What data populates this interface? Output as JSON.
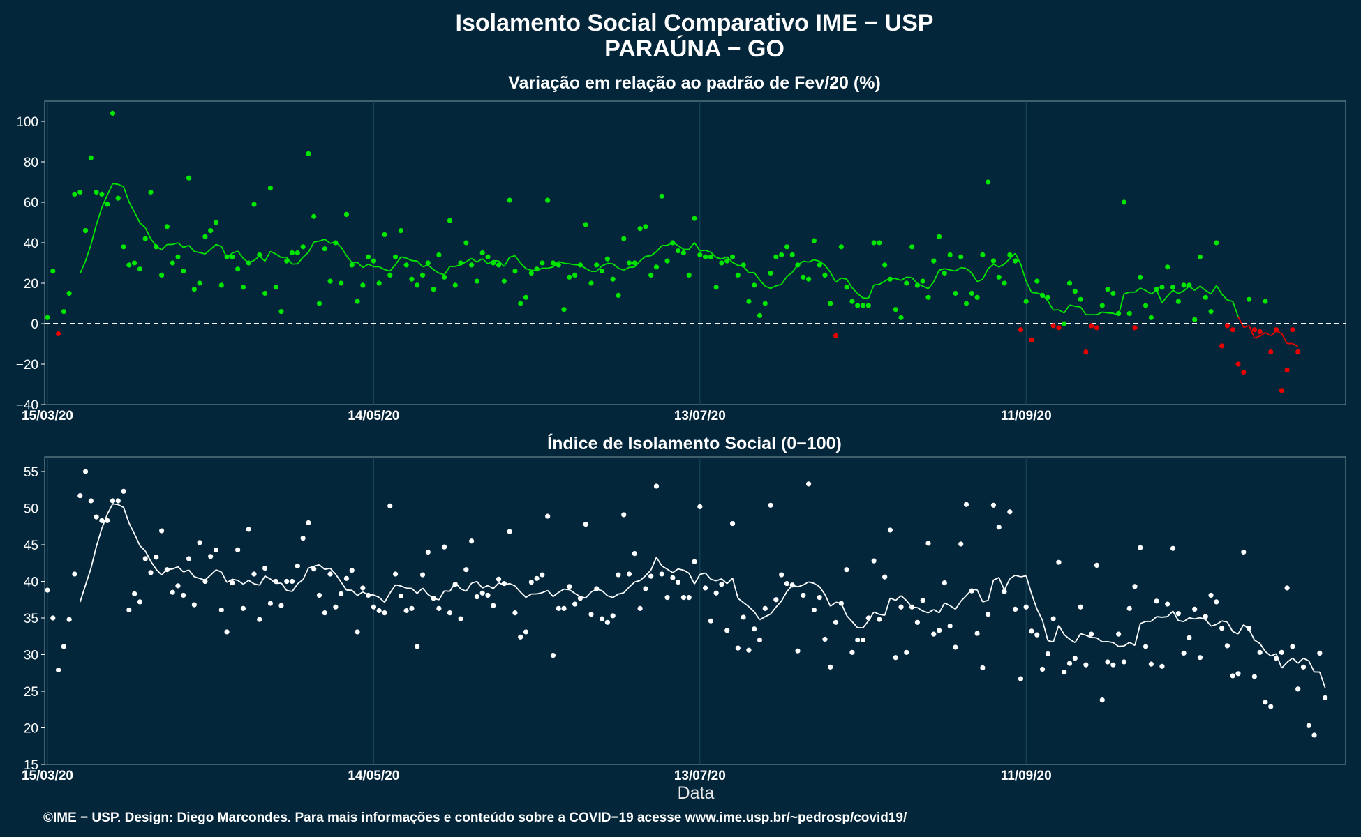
{
  "title": "Isolamento Social Comparativo IME − USP",
  "subtitle_location": "PARAÚNA − GO",
  "xlabel": "Data",
  "caption": "©IME − USP. Design: Diego Marcondes. Para mais informações e conteúdo sobre a COVID−19 acesse www.ime.usp.br/~pedrosp/covid19/",
  "colors": {
    "background": "#03263a",
    "positive": "#00e600",
    "negative": "#e60000",
    "index": "#ffffff",
    "grid": "#1c4a5a"
  },
  "chart_data": [
    {
      "type": "scatter",
      "title": "Variação em relação ao padrão de Fev/20 (%)",
      "x_start": "15/03/20",
      "x_ticks": [
        "15/03/20",
        "14/05/20",
        "13/07/20",
        "11/09/20"
      ],
      "x_tick_days": [
        0,
        60,
        120,
        180
      ],
      "ylim": [
        -40,
        110
      ],
      "y_ticks": [
        -40,
        -20,
        0,
        20,
        40,
        60,
        80,
        100
      ],
      "reference_line": 0,
      "grid": true,
      "values": [
        3,
        26,
        -5,
        6,
        15,
        64,
        65,
        46,
        82,
        65,
        64,
        59,
        104,
        62,
        38,
        29,
        30,
        27,
        42,
        65,
        38,
        24,
        48,
        30,
        33,
        26,
        72,
        17,
        20,
        43,
        46,
        50,
        19,
        33,
        33,
        27,
        18,
        30,
        59,
        34,
        15,
        67,
        18,
        6,
        31,
        35,
        35,
        38,
        84,
        53,
        10,
        37,
        21,
        40,
        20,
        54,
        29,
        11,
        19,
        33,
        31,
        20,
        44,
        24,
        33,
        46,
        29,
        22,
        19,
        24,
        30,
        17,
        34,
        23,
        51,
        19,
        30,
        40,
        29,
        21,
        35,
        33,
        30,
        29,
        21,
        61,
        26,
        10,
        13,
        25,
        27,
        30,
        61,
        30,
        29,
        7,
        23,
        24,
        29,
        49,
        20,
        29,
        26,
        32,
        22,
        14,
        42,
        30,
        30,
        47,
        48,
        24,
        28,
        63,
        31,
        40,
        36,
        35,
        24,
        52,
        34,
        33,
        33,
        18,
        30,
        31,
        33,
        24,
        29,
        11,
        19,
        4,
        10,
        25,
        33,
        34,
        38,
        34,
        29,
        23,
        22,
        41,
        29,
        24,
        10,
        -6,
        38,
        18,
        11,
        9,
        9,
        9,
        40,
        40,
        29,
        22,
        7,
        3,
        20,
        38,
        19,
        21,
        13,
        31,
        43,
        25,
        34,
        15,
        33,
        10,
        15,
        13,
        34,
        70,
        31,
        23,
        20,
        34,
        31,
        -3,
        11,
        -8,
        21,
        14,
        13,
        -1,
        -2,
        0,
        20,
        16,
        12,
        -14,
        -1,
        -2,
        9,
        17,
        15,
        5,
        60,
        5,
        -2,
        23,
        9,
        3,
        17,
        18,
        28,
        18,
        11,
        19,
        19,
        2,
        33,
        13,
        6,
        40,
        -11,
        -1,
        -3,
        -20,
        -24,
        12,
        -3,
        -4,
        11,
        -14,
        -3,
        -33,
        -23,
        -3,
        -14
      ],
      "moving_average": [
        null,
        null,
        null,
        null,
        null,
        null,
        null,
        null,
        null,
        null,
        null,
        null,
        null,
        null,
        null,
        null,
        null,
        null,
        null,
        null,
        null,
        null,
        null,
        null,
        null,
        null,
        null,
        null,
        null,
        null,
        null,
        null,
        null,
        null,
        null,
        null,
        null,
        null,
        null,
        null,
        null,
        null,
        null,
        null,
        null,
        null,
        null,
        null,
        null,
        null,
        null,
        null,
        null,
        null,
        null,
        null,
        null,
        null,
        null,
        null,
        null,
        null,
        null,
        null,
        null,
        null,
        null,
        null,
        null,
        null,
        null,
        null,
        null,
        null,
        null,
        null,
        null,
        null,
        null,
        null,
        null,
        null,
        null,
        null,
        null,
        null,
        null,
        null,
        null,
        null,
        null,
        null,
        null,
        null,
        null,
        null,
        null,
        null,
        null,
        null,
        null,
        null,
        null,
        null,
        null,
        null,
        null,
        null,
        null,
        null,
        null,
        null,
        null,
        null,
        null,
        null,
        null,
        null,
        null,
        null,
        null,
        null,
        null,
        null,
        null,
        null,
        null,
        null,
        null,
        null,
        null,
        null,
        null,
        null,
        null,
        null,
        null,
        null,
        null,
        null,
        null,
        null,
        null,
        null,
        null,
        null,
        null,
        null,
        null,
        null,
        null,
        null,
        null,
        null,
        null,
        null,
        null,
        null,
        null,
        null,
        null,
        null,
        null,
        null,
        null,
        null,
        null,
        null,
        null,
        null,
        null,
        null,
        null,
        null,
        null,
        null,
        null,
        null,
        null,
        null,
        null,
        null,
        null,
        null,
        null,
        null,
        null,
        null,
        null,
        null,
        null,
        null,
        null,
        null,
        null,
        null,
        null,
        null,
        null,
        null,
        null,
        null,
        null,
        null,
        null,
        null,
        null,
        null,
        null,
        null,
        null,
        null,
        null,
        null,
        null,
        null,
        null,
        null,
        null,
        null,
        null,
        null,
        null,
        null,
        null,
        null,
        null,
        null,
        null,
        null,
        null,
        null,
        null,
        null,
        null,
        null,
        null,
        null,
        null,
        null,
        null,
        null,
        null,
        null
      ]
    },
    {
      "type": "scatter",
      "title": "Índice de Isolamento Social (0−100)",
      "x_start": "15/03/20",
      "x_ticks": [
        "15/03/20",
        "14/05/20",
        "13/07/20",
        "11/09/20"
      ],
      "x_tick_days": [
        0,
        60,
        120,
        180
      ],
      "ylim": [
        15,
        57
      ],
      "y_ticks": [
        15,
        20,
        25,
        30,
        35,
        40,
        45,
        50,
        55
      ],
      "grid": true,
      "values": [
        38.8,
        35.0,
        27.9,
        31.1,
        34.8,
        41.0,
        51.7,
        55.0,
        51.0,
        48.8,
        48.3,
        48.3,
        51.0,
        51.0,
        52.3,
        36.1,
        38.3,
        37.2,
        43.1,
        41.2,
        43.3,
        46.9,
        41.6,
        38.5,
        39.4,
        38.1,
        43.1,
        36.8,
        45.3,
        40.0,
        43.4,
        44.3,
        36.1,
        33.1,
        39.8,
        44.3,
        36.3,
        47.1,
        41.0,
        34.8,
        41.8,
        37.0,
        40.0,
        36.7,
        40.0,
        40.0,
        42.1,
        45.9,
        48.0,
        41.7,
        38.1,
        35.7,
        41.0,
        36.5,
        38.3,
        40.4,
        41.5,
        33.1,
        39.1,
        38.1,
        36.5,
        36.0,
        35.7,
        50.3,
        41.0,
        38.0,
        36.0,
        36.3,
        31.1,
        40.9,
        44.0,
        37.7,
        36.3,
        44.7,
        35.7,
        39.6,
        34.9,
        41.6,
        45.5,
        37.9,
        38.4,
        38.1,
        36.7,
        40.3,
        39.7,
        46.8,
        35.7,
        32.4,
        33.1,
        39.9,
        40.4,
        40.9,
        48.9,
        29.9,
        36.3,
        36.3,
        39.3,
        36.9,
        37.7,
        47.8,
        35.5,
        39.0,
        34.9,
        34.4,
        35.3,
        40.9,
        49.1,
        41.0,
        43.8,
        36.3,
        39.0,
        40.7,
        53.0,
        41.0,
        37.8,
        40.5,
        39.9,
        37.8,
        37.8,
        42.7,
        50.2,
        39.1,
        34.6,
        38.4,
        39.6,
        33.3,
        47.9,
        30.9,
        35.1,
        30.6,
        33.5,
        32.0,
        36.3,
        50.4,
        37.5,
        40.9,
        39.7,
        39.5,
        30.5,
        38.1,
        53.3,
        36.1,
        37.8,
        32.1,
        28.3,
        34.4,
        37.0,
        41.6,
        30.3,
        32.0,
        32.0,
        35.0,
        42.8,
        34.8,
        40.6,
        47.0,
        29.6,
        36.5,
        30.3,
        36.5,
        34.4,
        37.4,
        45.2,
        32.8,
        33.3,
        39.8,
        33.9,
        31.0,
        45.1,
        50.5,
        38.7,
        32.9,
        28.2,
        35.5,
        50.4,
        47.4,
        38.6,
        49.5,
        36.2,
        26.7,
        36.5,
        33.2,
        32.7,
        28.0,
        30.1,
        34.9,
        42.6,
        27.6,
        28.8,
        29.5,
        36.5,
        28.6,
        32.8,
        42.2,
        23.8,
        29.0,
        28.6,
        32.8,
        29.0,
        36.3,
        39.3,
        44.6,
        31.1,
        28.7,
        37.3,
        28.4,
        36.9,
        44.5,
        35.6,
        30.2,
        32.3,
        36.2,
        29.6,
        35.2,
        38.1,
        37.2,
        33.6,
        31.2,
        27.1,
        27.4,
        44.0,
        33.6,
        27.0,
        30.3,
        23.5,
        22.9,
        29.5,
        30.3,
        39.1,
        31.1,
        25.3,
        28.3,
        20.3,
        19.0,
        30.2,
        24.1
      ],
      "moving_average": null
    }
  ]
}
